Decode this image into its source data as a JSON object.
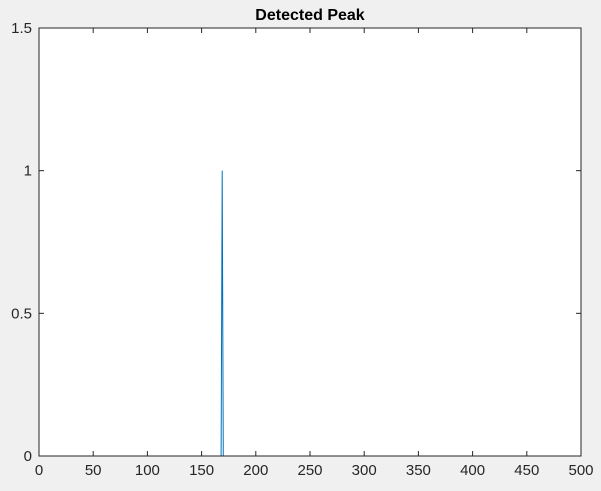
{
  "chart_data": {
    "type": "line",
    "title": "Detected Peak",
    "xlabel": "",
    "ylabel": "",
    "xlim": [
      0,
      500
    ],
    "ylim": [
      0,
      1.5
    ],
    "xticks": [
      "0",
      "50",
      "100",
      "150",
      "200",
      "250",
      "300",
      "350",
      "400",
      "450",
      "500"
    ],
    "yticks": [
      "0",
      "0.5",
      "1",
      "1.5"
    ],
    "grid": false,
    "series": [
      {
        "color": "#0072bd",
        "x": [
          0,
          168,
          169,
          170,
          485
        ],
        "y": [
          0,
          0,
          1,
          0,
          0
        ]
      }
    ]
  }
}
